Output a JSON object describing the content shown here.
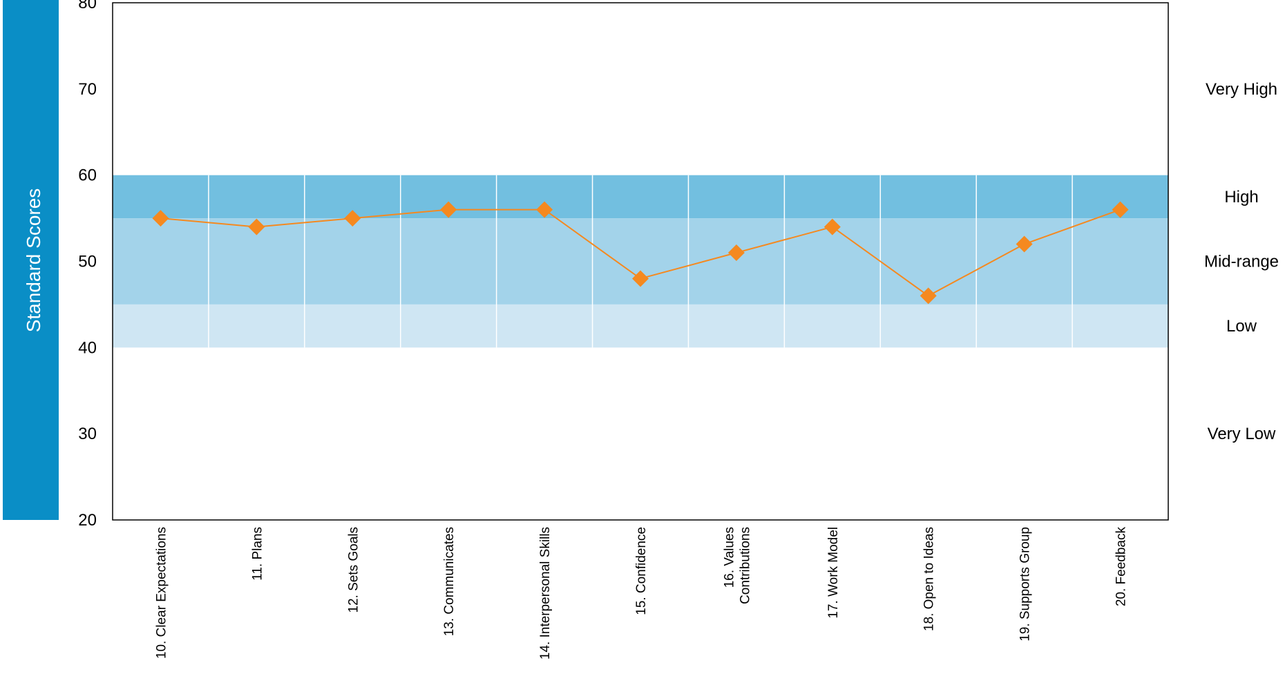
{
  "chart_data": {
    "type": "line",
    "ylabel": "Standard Scores",
    "ylim": [
      20,
      80
    ],
    "yticks": [
      20,
      30,
      40,
      50,
      60,
      70,
      80
    ],
    "categories": [
      [
        "10. Clear Expectations"
      ],
      [
        "11. Plans"
      ],
      [
        "12. Sets Goals"
      ],
      [
        "13. Communicates"
      ],
      [
        "14. Interpersonal Skills"
      ],
      [
        "15. Confidence"
      ],
      [
        "16. Values",
        "Contributions"
      ],
      [
        "17. Work Model"
      ],
      [
        "18. Open to Ideas"
      ],
      [
        "19. Supports Group"
      ],
      [
        "20. Feedback"
      ]
    ],
    "series": [
      {
        "values": [
          55,
          54,
          55,
          56,
          56,
          48,
          51,
          54,
          46,
          52,
          56
        ]
      }
    ],
    "bands": [
      {
        "from": 55,
        "to": 60,
        "color": "#72bfe0"
      },
      {
        "from": 45,
        "to": 55,
        "color": "#a3d3ea"
      },
      {
        "from": 40,
        "to": 45,
        "color": "#cfe6f3"
      }
    ],
    "band_labels": [
      {
        "label": "Very High",
        "y": 70
      },
      {
        "label": "High",
        "y": 57.5
      },
      {
        "label": "Mid-range",
        "y": 50
      },
      {
        "label": "Low",
        "y": 42.5
      },
      {
        "label": "Very Low",
        "y": 30
      }
    ],
    "colors": {
      "line": "#f5891f",
      "marker": "#f5891f",
      "ylabel_bar": "#0a8ec6",
      "axis": "#000000"
    }
  }
}
